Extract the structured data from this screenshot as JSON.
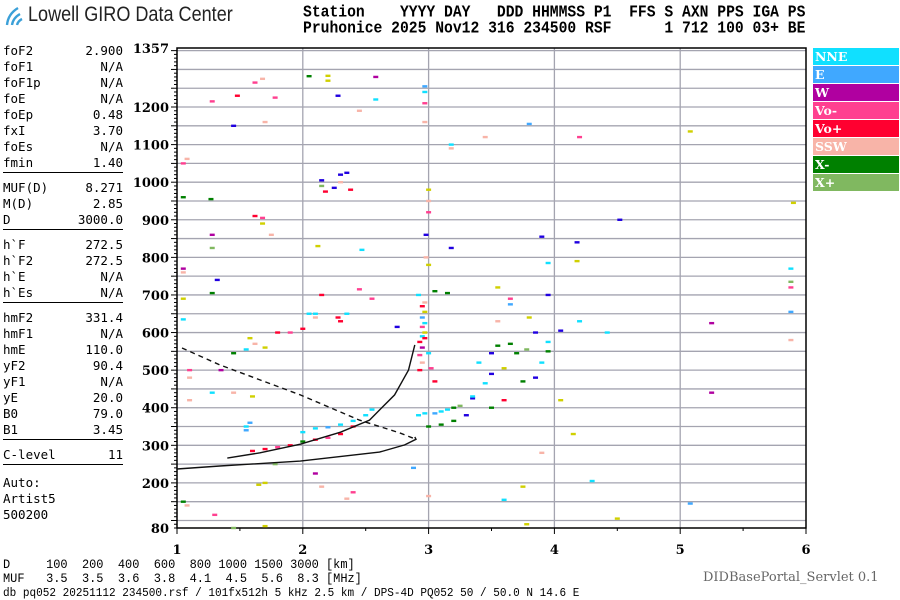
{
  "header": {
    "logo_text": "Lowell GIRO Data Center",
    "line1": "Station    YYYY DAY   DDD HHMMSS P1  FFS S AXN PPS IGA PS",
    "line2": "Pruhonice 2025 Nov12 316 234500 RSF      1 712 100 03+ BE"
  },
  "params": [
    {
      "group": [
        [
          "foF2",
          "2.900"
        ],
        [
          "foF1",
          "N/A"
        ],
        [
          "foF1p",
          "N/A"
        ],
        [
          "foE",
          "N/A"
        ],
        [
          "foEp",
          "0.48"
        ],
        [
          "fxI",
          "3.70"
        ],
        [
          "foEs",
          "N/A"
        ],
        [
          "fmin",
          "1.40"
        ]
      ]
    },
    {
      "group": [
        [
          "MUF(D)",
          "8.271"
        ],
        [
          "M(D)",
          "2.85"
        ],
        [
          "D",
          "3000.0"
        ]
      ]
    },
    {
      "group": [
        [
          "h`F",
          "272.5"
        ],
        [
          "h`F2",
          "272.5"
        ],
        [
          "h`E",
          "N/A"
        ],
        [
          "h`Es",
          "N/A"
        ]
      ]
    },
    {
      "group": [
        [
          "hmF2",
          "331.4"
        ],
        [
          "hmF1",
          "N/A"
        ],
        [
          "hmE",
          "110.0"
        ],
        [
          "yF2",
          "90.4"
        ],
        [
          "yF1",
          "N/A"
        ],
        [
          "yE",
          "20.0"
        ],
        [
          "B0",
          "79.0"
        ],
        [
          "B1",
          "3.45"
        ]
      ]
    },
    {
      "group": [
        [
          "C-level",
          "11"
        ]
      ]
    }
  ],
  "autoscaling": [
    "Auto:",
    "Artist5",
    "500200"
  ],
  "legend": [
    {
      "label": "NNE",
      "color": "#10e0ff"
    },
    {
      "label": "E",
      "color": "#40a8ff"
    },
    {
      "label": "W",
      "color": "#b000a0"
    },
    {
      "label": "Vo-",
      "color": "#ff4090"
    },
    {
      "label": "Vo+",
      "color": "#ff0030"
    },
    {
      "label": "SSW",
      "color": "#f8b4a8"
    },
    {
      "label": "X-",
      "color": "#008000"
    },
    {
      "label": "X+",
      "color": "#80b860"
    }
  ],
  "footer": {
    "d_row": "D     100  200  400  600  800 1000 1500 3000 [km]",
    "muf_row": "MUF   3.5  3.5  3.6  3.8  4.1  4.5  5.6  8.3 [MHz]",
    "file_line": "db pq052 20251112 234500.rsf / 101fx512h 5 kHz 2.5 km / DPS-4D PQ052 50 / 50.0 N 14.6 E",
    "servlet": "DIDBasePortal_Servlet 0.1"
  },
  "chart_data": {
    "type": "scatter",
    "xlim": [
      1,
      6
    ],
    "ylim": [
      80,
      1357
    ],
    "x_ticks": [
      "1",
      "2",
      "3",
      "4",
      "5",
      "6"
    ],
    "y_ticks": [
      "80",
      "200",
      "300",
      "400",
      "500",
      "600",
      "700",
      "800",
      "900",
      "1000",
      "1100",
      "1200",
      "1357"
    ],
    "grid": true,
    "legend_placement": "right",
    "extra_colors": {
      "yellow": "#d0d000",
      "blue": "#2000e0"
    },
    "curves": [
      {
        "style": "solid",
        "points": [
          [
            1.0,
            237
          ],
          [
            1.34,
            245
          ],
          [
            1.98,
            258
          ],
          [
            2.61,
            282
          ],
          [
            2.81,
            301
          ],
          [
            2.9,
            316
          ],
          [
            2.89,
            322
          ]
        ]
      },
      {
        "style": "dashed",
        "points": [
          [
            1.04,
            559
          ],
          [
            1.34,
            514
          ],
          [
            1.98,
            434
          ],
          [
            2.45,
            367
          ],
          [
            2.77,
            333
          ],
          [
            2.9,
            316
          ]
        ]
      },
      {
        "style": "solid",
        "points": [
          [
            1.4,
            266
          ],
          [
            1.66,
            280
          ],
          [
            1.98,
            303
          ],
          [
            2.3,
            335
          ],
          [
            2.53,
            367
          ],
          [
            2.73,
            434
          ],
          [
            2.84,
            500
          ],
          [
            2.89,
            567
          ]
        ]
      }
    ],
    "echoes": [
      [
        1.05,
        1050,
        "Vo-"
      ],
      [
        1.08,
        1062,
        "SSW"
      ],
      [
        1.05,
        960,
        "X-"
      ],
      [
        1.27,
        955,
        "X-"
      ],
      [
        1.28,
        860,
        "W"
      ],
      [
        1.28,
        825,
        "X+"
      ],
      [
        1.05,
        770,
        "W"
      ],
      [
        1.05,
        760,
        "SSW"
      ],
      [
        1.32,
        740,
        "blue"
      ],
      [
        1.05,
        690,
        "yellow"
      ],
      [
        1.28,
        705,
        "X-"
      ],
      [
        1.05,
        635,
        "NNE"
      ],
      [
        1.45,
        1150,
        "blue"
      ],
      [
        1.48,
        1230,
        "Vo+"
      ],
      [
        1.28,
        1215,
        "Vo-"
      ],
      [
        1.62,
        1265,
        "Vo-"
      ],
      [
        1.68,
        1275,
        "SSW"
      ],
      [
        1.78,
        1225,
        "Vo-"
      ],
      [
        1.7,
        1160,
        "SSW"
      ],
      [
        2.05,
        1282,
        "X-"
      ],
      [
        2.2,
        1283,
        "yellow"
      ],
      [
        2.2,
        1270,
        "yellow"
      ],
      [
        2.58,
        1280,
        "W"
      ],
      [
        2.28,
        1230,
        "blue"
      ],
      [
        2.58,
        1220,
        "NNE"
      ],
      [
        2.45,
        1190,
        "SSW"
      ],
      [
        2.97,
        1255,
        "E"
      ],
      [
        2.97,
        1240,
        "NNE"
      ],
      [
        2.97,
        1210,
        "Vo-"
      ],
      [
        2.97,
        1160,
        "SSW"
      ],
      [
        3.18,
        1100,
        "NNE"
      ],
      [
        3.45,
        1120,
        "SSW"
      ],
      [
        3.8,
        1155,
        "E"
      ],
      [
        4.2,
        1120,
        "Vo-"
      ],
      [
        3.18,
        1090,
        "SSW"
      ],
      [
        5.08,
        1135,
        "yellow"
      ],
      [
        2.15,
        1005,
        "blue"
      ],
      [
        2.25,
        985,
        "blue"
      ],
      [
        2.3,
        1020,
        "blue"
      ],
      [
        2.35,
        1025,
        "blue"
      ],
      [
        2.3,
        1000,
        "SSW"
      ],
      [
        2.18,
        975,
        "Vo+"
      ],
      [
        2.38,
        980,
        "Vo+"
      ],
      [
        2.15,
        990,
        "X+"
      ],
      [
        1.62,
        910,
        "Vo+"
      ],
      [
        1.68,
        905,
        "Vo-"
      ],
      [
        1.68,
        890,
        "yellow"
      ],
      [
        1.75,
        860,
        "SSW"
      ],
      [
        2.12,
        830,
        "yellow"
      ],
      [
        2.47,
        820,
        "NNE"
      ],
      [
        3.0,
        980,
        "yellow"
      ],
      [
        3.0,
        950,
        "SSW"
      ],
      [
        3.0,
        920,
        "Vo-"
      ],
      [
        2.98,
        860,
        "blue"
      ],
      [
        3.18,
        825,
        "blue"
      ],
      [
        2.98,
        800,
        "SSW"
      ],
      [
        3.0,
        780,
        "yellow"
      ],
      [
        3.9,
        855,
        "blue"
      ],
      [
        4.18,
        840,
        "blue"
      ],
      [
        3.95,
        785,
        "NNE"
      ],
      [
        4.18,
        790,
        "yellow"
      ],
      [
        4.52,
        900,
        "blue"
      ],
      [
        5.9,
        945,
        "yellow"
      ],
      [
        5.88,
        770,
        "NNE"
      ],
      [
        5.88,
        735,
        "X+"
      ],
      [
        5.88,
        720,
        "Vo-"
      ],
      [
        5.88,
        655,
        "E"
      ],
      [
        5.88,
        580,
        "SSW"
      ],
      [
        5.25,
        625,
        "W"
      ],
      [
        5.25,
        440,
        "W"
      ],
      [
        2.45,
        715,
        "Vo-"
      ],
      [
        2.55,
        690,
        "Vo-"
      ],
      [
        2.15,
        700,
        "Vo+"
      ],
      [
        2.75,
        615,
        "blue"
      ],
      [
        2.92,
        700,
        "NNE"
      ],
      [
        3.05,
        710,
        "X-"
      ],
      [
        3.15,
        705,
        "X-"
      ],
      [
        2.97,
        680,
        "SSW"
      ],
      [
        3.55,
        720,
        "yellow"
      ],
      [
        3.65,
        690,
        "Vo-"
      ],
      [
        3.65,
        675,
        "E"
      ],
      [
        3.95,
        700,
        "blue"
      ],
      [
        4.05,
        605,
        "blue"
      ],
      [
        4.2,
        630,
        "NNE"
      ],
      [
        3.8,
        640,
        "yellow"
      ],
      [
        3.55,
        630,
        "SSW"
      ],
      [
        4.42,
        600,
        "NNE"
      ],
      [
        2.93,
        500,
        "Vo+"
      ],
      [
        2.95,
        520,
        "SSW"
      ],
      [
        2.93,
        540,
        "Vo-"
      ],
      [
        2.95,
        560,
        "W"
      ],
      [
        2.93,
        575,
        "Vo+"
      ],
      [
        2.95,
        590,
        "NNE"
      ],
      [
        2.97,
        600,
        "yellow"
      ],
      [
        2.95,
        615,
        "Vo-"
      ],
      [
        2.97,
        625,
        "NNE"
      ],
      [
        2.95,
        640,
        "E"
      ],
      [
        2.97,
        655,
        "yellow"
      ],
      [
        2.95,
        670,
        "Vo+"
      ],
      [
        2.97,
        585,
        "Vo+"
      ],
      [
        3.0,
        545,
        "NNE"
      ],
      [
        3.02,
        505,
        "Vo-"
      ],
      [
        3.05,
        470,
        "Vo+"
      ],
      [
        1.6,
        285,
        "Vo+"
      ],
      [
        1.7,
        290,
        "Vo+"
      ],
      [
        1.8,
        295,
        "Vo-"
      ],
      [
        1.9,
        300,
        "Vo+"
      ],
      [
        2.0,
        310,
        "X-"
      ],
      [
        2.1,
        315,
        "Vo+"
      ],
      [
        2.2,
        320,
        "Vo-"
      ],
      [
        2.3,
        330,
        "Vo+"
      ],
      [
        2.4,
        350,
        "Vo+"
      ],
      [
        2.0,
        335,
        "NNE"
      ],
      [
        2.1,
        345,
        "NNE"
      ],
      [
        2.2,
        348,
        "E"
      ],
      [
        2.3,
        355,
        "NNE"
      ],
      [
        2.4,
        365,
        "NNE"
      ],
      [
        2.5,
        380,
        "NNE"
      ],
      [
        2.55,
        395,
        "NNE"
      ],
      [
        2.92,
        380,
        "NNE"
      ],
      [
        2.97,
        385,
        "NNE"
      ],
      [
        3.05,
        385,
        "E"
      ],
      [
        3.1,
        390,
        "NNE"
      ],
      [
        3.15,
        395,
        "NNE"
      ],
      [
        3.2,
        400,
        "X-"
      ],
      [
        3.25,
        405,
        "X+"
      ],
      [
        3.0,
        350,
        "X-"
      ],
      [
        3.1,
        355,
        "X-"
      ],
      [
        3.2,
        365,
        "X-"
      ],
      [
        3.3,
        380,
        "blue"
      ],
      [
        3.35,
        425,
        "blue"
      ],
      [
        3.35,
        430,
        "NNE"
      ],
      [
        3.45,
        465,
        "NNE"
      ],
      [
        3.5,
        490,
        "blue"
      ],
      [
        3.6,
        420,
        "Vo+"
      ],
      [
        3.5,
        400,
        "X-"
      ],
      [
        3.75,
        470,
        "X-"
      ],
      [
        3.85,
        480,
        "blue"
      ],
      [
        3.6,
        505,
        "yellow"
      ],
      [
        3.9,
        520,
        "NNE"
      ],
      [
        3.7,
        545,
        "X-"
      ],
      [
        3.78,
        555,
        "X+"
      ],
      [
        3.95,
        550,
        "X-"
      ],
      [
        3.95,
        575,
        "NNE"
      ],
      [
        3.85,
        600,
        "blue"
      ],
      [
        3.5,
        545,
        "blue"
      ],
      [
        3.4,
        520,
        "NNE"
      ],
      [
        3.55,
        565,
        "X-"
      ],
      [
        3.65,
        570,
        "X-"
      ],
      [
        1.05,
        150,
        "X-"
      ],
      [
        1.08,
        140,
        "SSW"
      ],
      [
        1.3,
        115,
        "Vo-"
      ],
      [
        1.45,
        80,
        "X+"
      ],
      [
        1.7,
        85,
        "yellow"
      ],
      [
        1.7,
        200,
        "yellow"
      ],
      [
        1.65,
        195,
        "yellow"
      ],
      [
        1.78,
        250,
        "X+"
      ],
      [
        2.1,
        225,
        "W"
      ],
      [
        2.15,
        190,
        "SSW"
      ],
      [
        2.4,
        175,
        "Vo-"
      ],
      [
        2.35,
        158,
        "SSW"
      ],
      [
        2.88,
        240,
        "E"
      ],
      [
        3.0,
        165,
        "SSW"
      ],
      [
        3.6,
        155,
        "NNE"
      ],
      [
        3.75,
        190,
        "yellow"
      ],
      [
        3.78,
        90,
        "yellow"
      ],
      [
        3.9,
        280,
        "SSW"
      ],
      [
        4.15,
        330,
        "yellow"
      ],
      [
        4.05,
        420,
        "yellow"
      ],
      [
        4.3,
        205,
        "NNE"
      ],
      [
        4.5,
        105,
        "yellow"
      ],
      [
        5.08,
        145,
        "E"
      ],
      [
        1.1,
        420,
        "SSW"
      ],
      [
        1.1,
        480,
        "SSW"
      ],
      [
        1.1,
        500,
        "Vo-"
      ],
      [
        1.28,
        440,
        "NNE"
      ],
      [
        1.58,
        360,
        "E"
      ],
      [
        1.35,
        500,
        "W"
      ],
      [
        1.45,
        545,
        "X-"
      ],
      [
        1.62,
        570,
        "SSW"
      ],
      [
        1.7,
        560,
        "yellow"
      ],
      [
        1.58,
        585,
        "yellow"
      ],
      [
        1.55,
        555,
        "NNE"
      ],
      [
        1.8,
        600,
        "Vo+"
      ],
      [
        1.9,
        600,
        "Vo-"
      ],
      [
        2.0,
        610,
        "Vo+"
      ],
      [
        2.05,
        650,
        "NNE"
      ],
      [
        2.1,
        650,
        "NNE"
      ],
      [
        2.28,
        640,
        "Vo+"
      ],
      [
        2.35,
        650,
        "NNE"
      ],
      [
        1.6,
        430,
        "yellow"
      ],
      [
        1.45,
        440,
        "SSW"
      ],
      [
        1.55,
        350,
        "NNE"
      ],
      [
        1.55,
        340,
        "E"
      ],
      [
        2.1,
        640,
        "SSW"
      ],
      [
        2.3,
        630,
        "Vo+"
      ]
    ]
  }
}
